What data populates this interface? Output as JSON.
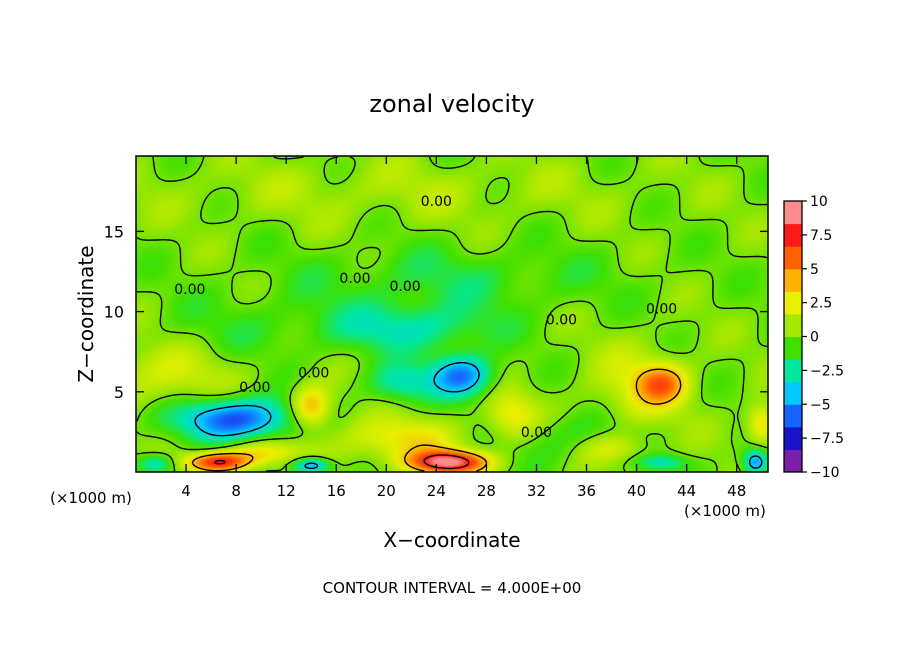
{
  "chart_data": {
    "type": "heatmap",
    "title": "zonal velocity",
    "xlabel": "X−coordinate",
    "ylabel": "Z−coordinate",
    "x_unit_left": "(×1000 m)",
    "x_unit_right": "(×1000 m)",
    "footer": "CONTOUR INTERVAL = 4.000E+00",
    "xlim": [
      0,
      50.5
    ],
    "ylim": [
      0,
      19.7
    ],
    "x_ticks": [
      4,
      8,
      12,
      16,
      20,
      24,
      28,
      32,
      36,
      40,
      44,
      48
    ],
    "x_tick_labels": [
      "4",
      "8",
      "12",
      "16",
      "20",
      "24",
      "28",
      "32",
      "36",
      "40",
      "44",
      "48"
    ],
    "y_ticks": [
      5,
      10,
      15
    ],
    "y_tick_labels": [
      "5",
      "10",
      "15"
    ],
    "colorbar": {
      "range": [
        -10,
        10
      ],
      "tick_values": [
        10,
        7.5,
        5,
        2.5,
        0,
        -2.5,
        -5,
        -7.5,
        -10
      ],
      "tick_labels": [
        "10",
        "7.5",
        "5",
        "2.5",
        "0",
        "−2.5",
        "−5",
        "−7.5",
        "−10"
      ],
      "colors": [
        "#7a1fa8",
        "#1a12c8",
        "#1565ff",
        "#00c8ff",
        "#00e8a0",
        "#3ee000",
        "#a6e800",
        "#e8f000",
        "#ffb000",
        "#ff6000",
        "#ff1a1a",
        "#ff8c8c"
      ]
    },
    "contour_labels": [
      {
        "text": "0.00",
        "x": 17.5,
        "z": 12.1
      },
      {
        "text": "0.00",
        "x": 4.3,
        "z": 11.4
      },
      {
        "text": "0.00",
        "x": 21.5,
        "z": 11.6
      },
      {
        "text": "0.00",
        "x": 24.0,
        "z": 16.9
      },
      {
        "text": "0.00",
        "x": 34.0,
        "z": 9.5
      },
      {
        "text": "0.00",
        "x": 42.0,
        "z": 10.2
      },
      {
        "text": "0.00",
        "x": 9.5,
        "z": 5.3
      },
      {
        "text": "0.00",
        "x": 14.2,
        "z": 6.2
      },
      {
        "text": "0.00",
        "x": 32.0,
        "z": 2.5
      }
    ],
    "field_features": [
      {
        "v": -7,
        "x": 8.0,
        "z": 3.3,
        "rx": 4.5,
        "rz": 1.3
      },
      {
        "v": -6,
        "x": 26.0,
        "z": 6.0,
        "rx": 2.5,
        "rz": 1.3
      },
      {
        "v": -3,
        "x": 21.0,
        "z": 5.5,
        "rx": 2.5,
        "rz": 1.2
      },
      {
        "v": -6,
        "x": 49.5,
        "z": 0.6,
        "rx": 1.0,
        "rz": 0.8
      },
      {
        "v": -4,
        "x": 1.5,
        "z": 0.5,
        "rx": 1.5,
        "rz": 0.6
      },
      {
        "v": -6,
        "x": 14.0,
        "z": 0.4,
        "rx": 1.5,
        "rz": 0.5
      },
      {
        "v": -3,
        "x": 22.0,
        "z": 9.0,
        "rx": 6.0,
        "rz": 1.5
      },
      {
        "v": -2,
        "x": 36.0,
        "z": 2.0,
        "rx": 5.0,
        "rz": 1.5
      },
      {
        "v": -3,
        "x": 42.0,
        "z": 0.6,
        "rx": 2.0,
        "rz": 0.5
      },
      {
        "v": 8,
        "x": 6.5,
        "z": 0.6,
        "rx": 2.5,
        "rz": 0.6
      },
      {
        "v": 10,
        "x": 25.0,
        "z": 0.6,
        "rx": 3.0,
        "rz": 0.7
      },
      {
        "v": 5,
        "x": 14.0,
        "z": 4.0,
        "rx": 1.6,
        "rz": 1.3
      },
      {
        "v": 3,
        "x": 21.0,
        "z": 2.0,
        "rx": 5.0,
        "rz": 1.4
      },
      {
        "v": 3,
        "x": 10.0,
        "z": 1.2,
        "rx": 3.5,
        "rz": 0.8
      },
      {
        "v": 5,
        "x": 42.0,
        "z": 5.5,
        "rx": 2.0,
        "rz": 1.2
      },
      {
        "v": 3,
        "x": 30.0,
        "z": 3.5,
        "rx": 2.0,
        "rz": 1.5
      },
      {
        "v": 3,
        "x": 38.0,
        "z": 1.5,
        "rx": 3.0,
        "rz": 1.0
      },
      {
        "v": 4,
        "x": 50.0,
        "z": 3.0,
        "rx": 1.2,
        "rz": 1.2
      },
      {
        "v": 2,
        "x": 2.0,
        "z": 6.0,
        "rx": 6.0,
        "rz": 2.0
      },
      {
        "v": 2,
        "x": 40.0,
        "z": 5.0,
        "rx": 4.0,
        "rz": 3.0
      },
      {
        "v": -1.5,
        "x": 25.0,
        "z": 12.0,
        "rx": 12.0,
        "rz": 2.0
      },
      {
        "v": -1,
        "x": 10.0,
        "z": 9.0,
        "rx": 8.0,
        "rz": 2.0
      },
      {
        "v": 1,
        "x": 20.0,
        "z": 17.5,
        "rx": 20.0,
        "rz": 2.0
      }
    ]
  }
}
